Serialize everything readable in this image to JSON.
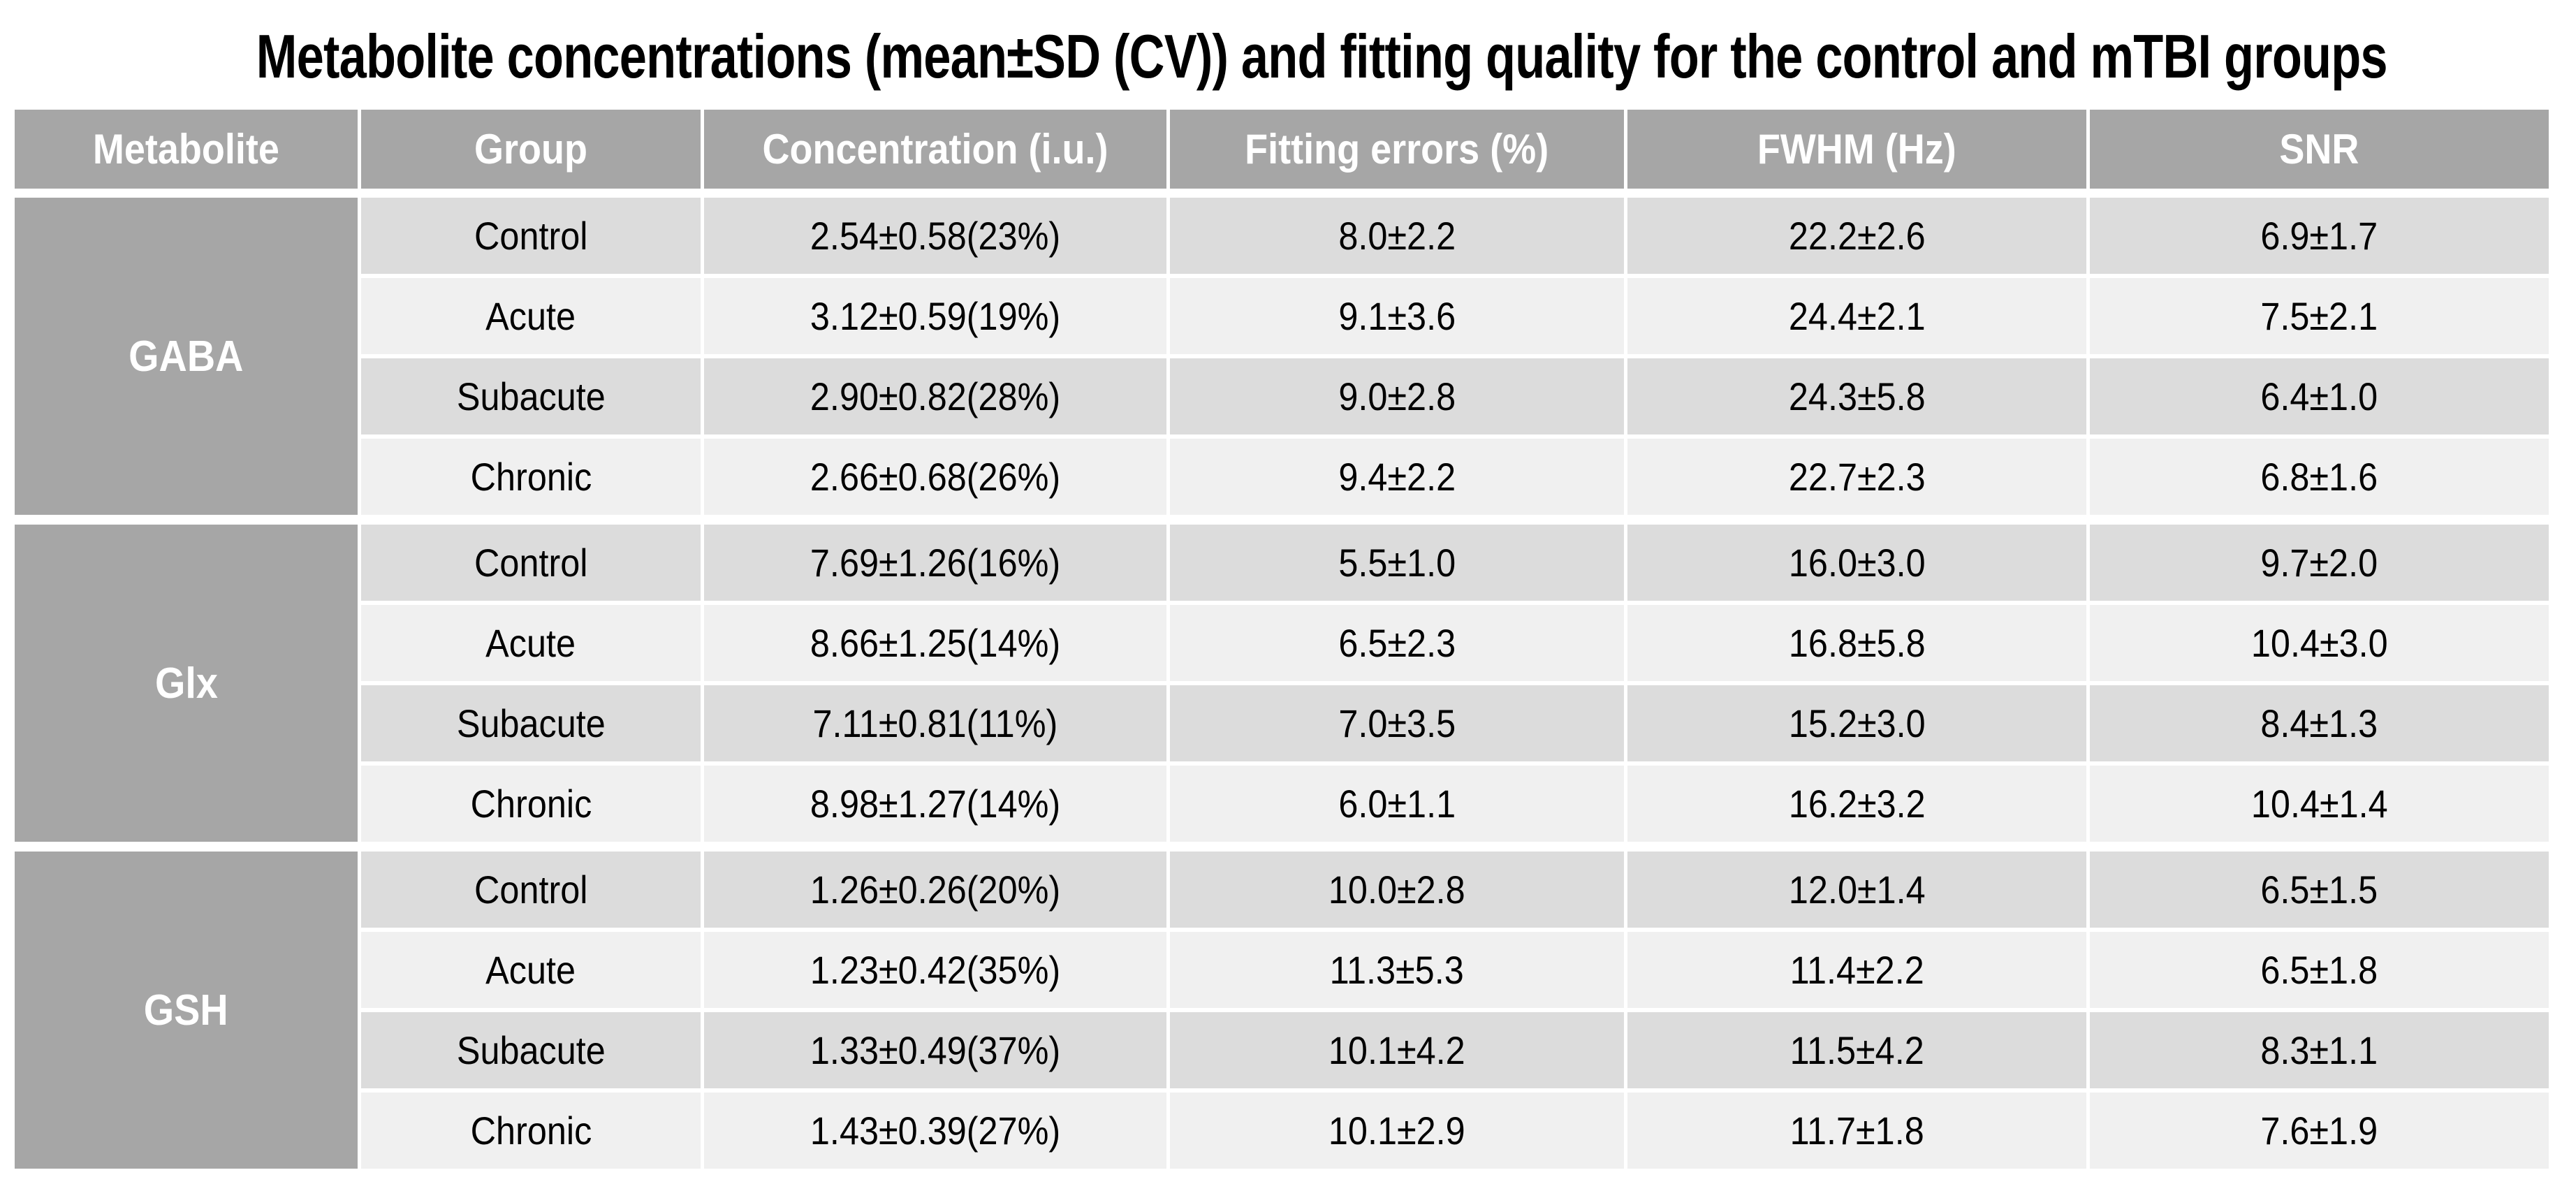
{
  "chart_data": {
    "type": "table",
    "title": "Metabolite concentrations (mean±SD (CV)) and fitting quality for the control and mTBI groups",
    "columns": [
      "Metabolite",
      "Group",
      "Concentration (i.u.)",
      "Fitting errors (%)",
      "FWHM (Hz)",
      "SNR"
    ],
    "groups": [
      {
        "metabolite": "GABA",
        "rows": [
          {
            "group": "Control",
            "concentration": "2.54±0.58(23%)",
            "fitting_errors": "8.0±2.2",
            "fwhm": "22.2±2.6",
            "snr": "6.9±1.7"
          },
          {
            "group": "Acute",
            "concentration": "3.12±0.59(19%)",
            "fitting_errors": "9.1±3.6",
            "fwhm": "24.4±2.1",
            "snr": "7.5±2.1"
          },
          {
            "group": "Subacute",
            "concentration": "2.90±0.82(28%)",
            "fitting_errors": "9.0±2.8",
            "fwhm": "24.3±5.8",
            "snr": "6.4±1.0"
          },
          {
            "group": "Chronic",
            "concentration": "2.66±0.68(26%)",
            "fitting_errors": "9.4±2.2",
            "fwhm": "22.7±2.3",
            "snr": "6.8±1.6"
          }
        ]
      },
      {
        "metabolite": "Glx",
        "rows": [
          {
            "group": "Control",
            "concentration": "7.69±1.26(16%)",
            "fitting_errors": "5.5±1.0",
            "fwhm": "16.0±3.0",
            "snr": "9.7±2.0"
          },
          {
            "group": "Acute",
            "concentration": "8.66±1.25(14%)",
            "fitting_errors": "6.5±2.3",
            "fwhm": "16.8±5.8",
            "snr": "10.4±3.0"
          },
          {
            "group": "Subacute",
            "concentration": "7.11±0.81(11%)",
            "fitting_errors": "7.0±3.5",
            "fwhm": "15.2±3.0",
            "snr": "8.4±1.3"
          },
          {
            "group": "Chronic",
            "concentration": "8.98±1.27(14%)",
            "fitting_errors": "6.0±1.1",
            "fwhm": "16.2±3.2",
            "snr": "10.4±1.4"
          }
        ]
      },
      {
        "metabolite": "GSH",
        "rows": [
          {
            "group": "Control",
            "concentration": "1.26±0.26(20%)",
            "fitting_errors": "10.0±2.8",
            "fwhm": "12.0±1.4",
            "snr": "6.5±1.5"
          },
          {
            "group": "Acute",
            "concentration": "1.23±0.42(35%)",
            "fitting_errors": "11.3±5.3",
            "fwhm": "11.4±2.2",
            "snr": "6.5±1.8"
          },
          {
            "group": "Subacute",
            "concentration": "1.33±0.49(37%)",
            "fitting_errors": "10.1±4.2",
            "fwhm": "11.5±4.2",
            "snr": "8.3±1.1"
          },
          {
            "group": "Chronic",
            "concentration": "1.43±0.39(27%)",
            "fitting_errors": "10.1±2.9",
            "fwhm": "11.7±1.8",
            "snr": "7.6±1.9"
          }
        ]
      }
    ],
    "layout": {
      "banding": "alternating-rows",
      "gridlines": "white-gaps",
      "legend_position": "none"
    }
  },
  "colors": {
    "header_bg": "#a6a6a6",
    "header_text": "#ffffff",
    "band_dark": "#dcdcdc",
    "band_light": "#f0f0f0",
    "title_text": "#000000",
    "page_bg": "#ffffff"
  }
}
